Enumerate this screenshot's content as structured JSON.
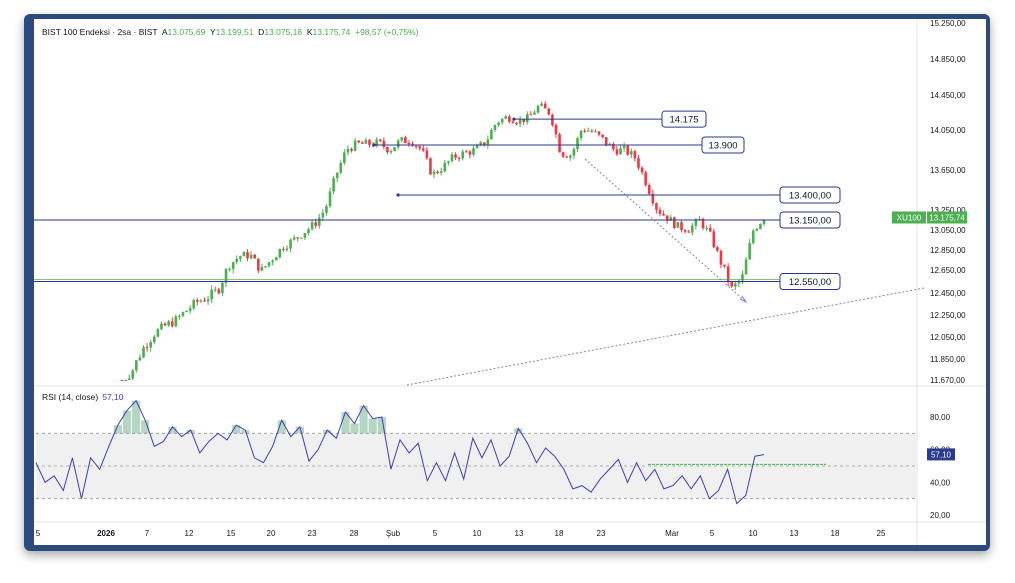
{
  "header": {
    "symbol": "BIST 100 Endeksi · 2sa · BIST",
    "open_label": "A",
    "open": "13.075,69",
    "high_label": "Y",
    "high": "13.199,51",
    "low_label": "D",
    "low": "13.075,18",
    "close_label": "K",
    "close": "13.175,74",
    "change": "+98,57 (+0,75%)"
  },
  "price_badge": {
    "ticker": "XU100",
    "value": "13.175,74"
  },
  "rsi": {
    "label": "RSI (14, close)",
    "value": "57,10",
    "badge": "57,10"
  },
  "colors": {
    "up": "#4caf50",
    "down": "#f23645",
    "level_line": "#2a3a8c",
    "rsi_line": "#3f3fb3",
    "rsi_fill": "#2e8b57",
    "badge_green": "#4caf50",
    "frame": "#2c4a7e"
  },
  "chart_data": [
    {
      "type": "candlestick",
      "price_axis_ticks": [
        "15.250,00",
        "14.850,00",
        "14.450,00",
        "14.050,00",
        "13.650,00",
        "13.250,00",
        "13.050,00",
        "12.850,00",
        "12.650,00",
        "12.450,00",
        "12.250,00",
        "12.050,00",
        "11.850,00",
        "11.670,00"
      ],
      "time_axis_ticks": [
        "5",
        "2026",
        "7",
        "12",
        "15",
        "20",
        "23",
        "28",
        "Şub",
        "5",
        "10",
        "13",
        "18",
        "23",
        "Mar",
        "5",
        "10",
        "13",
        "18",
        "25"
      ],
      "levels": [
        {
          "label": "14.175",
          "value": 14175
        },
        {
          "label": "13.900",
          "value": 13900
        },
        {
          "label": "13.400,00",
          "value": 13400
        },
        {
          "label": "13.150,00",
          "value": 13150
        },
        {
          "label": "12.550,00",
          "value": 12550
        }
      ],
      "price_trend": [
        11640,
        11760,
        11950,
        12080,
        12150,
        12200,
        12290,
        12370,
        12410,
        12480,
        12700,
        12790,
        12800,
        12640,
        12760,
        12880,
        12950,
        13030,
        13110,
        13260,
        13600,
        13860,
        13910,
        13910,
        13920,
        13850,
        13940,
        13950,
        13850,
        13600,
        13680,
        13780,
        13820,
        13850,
        13930,
        14140,
        14200,
        14150,
        14190,
        14330,
        14240,
        13820,
        13800,
        14070,
        14030,
        13950,
        13850,
        13850,
        13770,
        13520,
        13260,
        13170,
        13080,
        13060,
        13150,
        12990,
        12720,
        12480,
        12590,
        13050,
        13176
      ],
      "rsi_ticks": [
        "80,00",
        "60,00",
        "40,00",
        "20,00"
      ],
      "rsi_levels": [
        70,
        50,
        30
      ],
      "rsi_values": [
        52,
        40,
        44,
        35,
        55,
        30,
        55,
        48,
        62,
        75,
        84,
        90,
        78,
        62,
        65,
        74,
        68,
        72,
        58,
        65,
        70,
        66,
        75,
        72,
        55,
        52,
        62,
        78,
        68,
        74,
        53,
        60,
        72,
        67,
        83,
        76,
        87,
        79,
        80,
        48,
        66,
        58,
        64,
        41,
        52,
        41,
        58,
        42,
        67,
        55,
        66,
        50,
        56,
        73,
        64,
        52,
        61,
        56,
        48,
        36,
        38,
        34,
        42,
        48,
        54,
        40,
        52,
        41,
        48,
        36,
        38,
        44,
        36,
        44,
        30,
        35,
        48,
        27,
        32,
        56,
        57
      ]
    }
  ]
}
